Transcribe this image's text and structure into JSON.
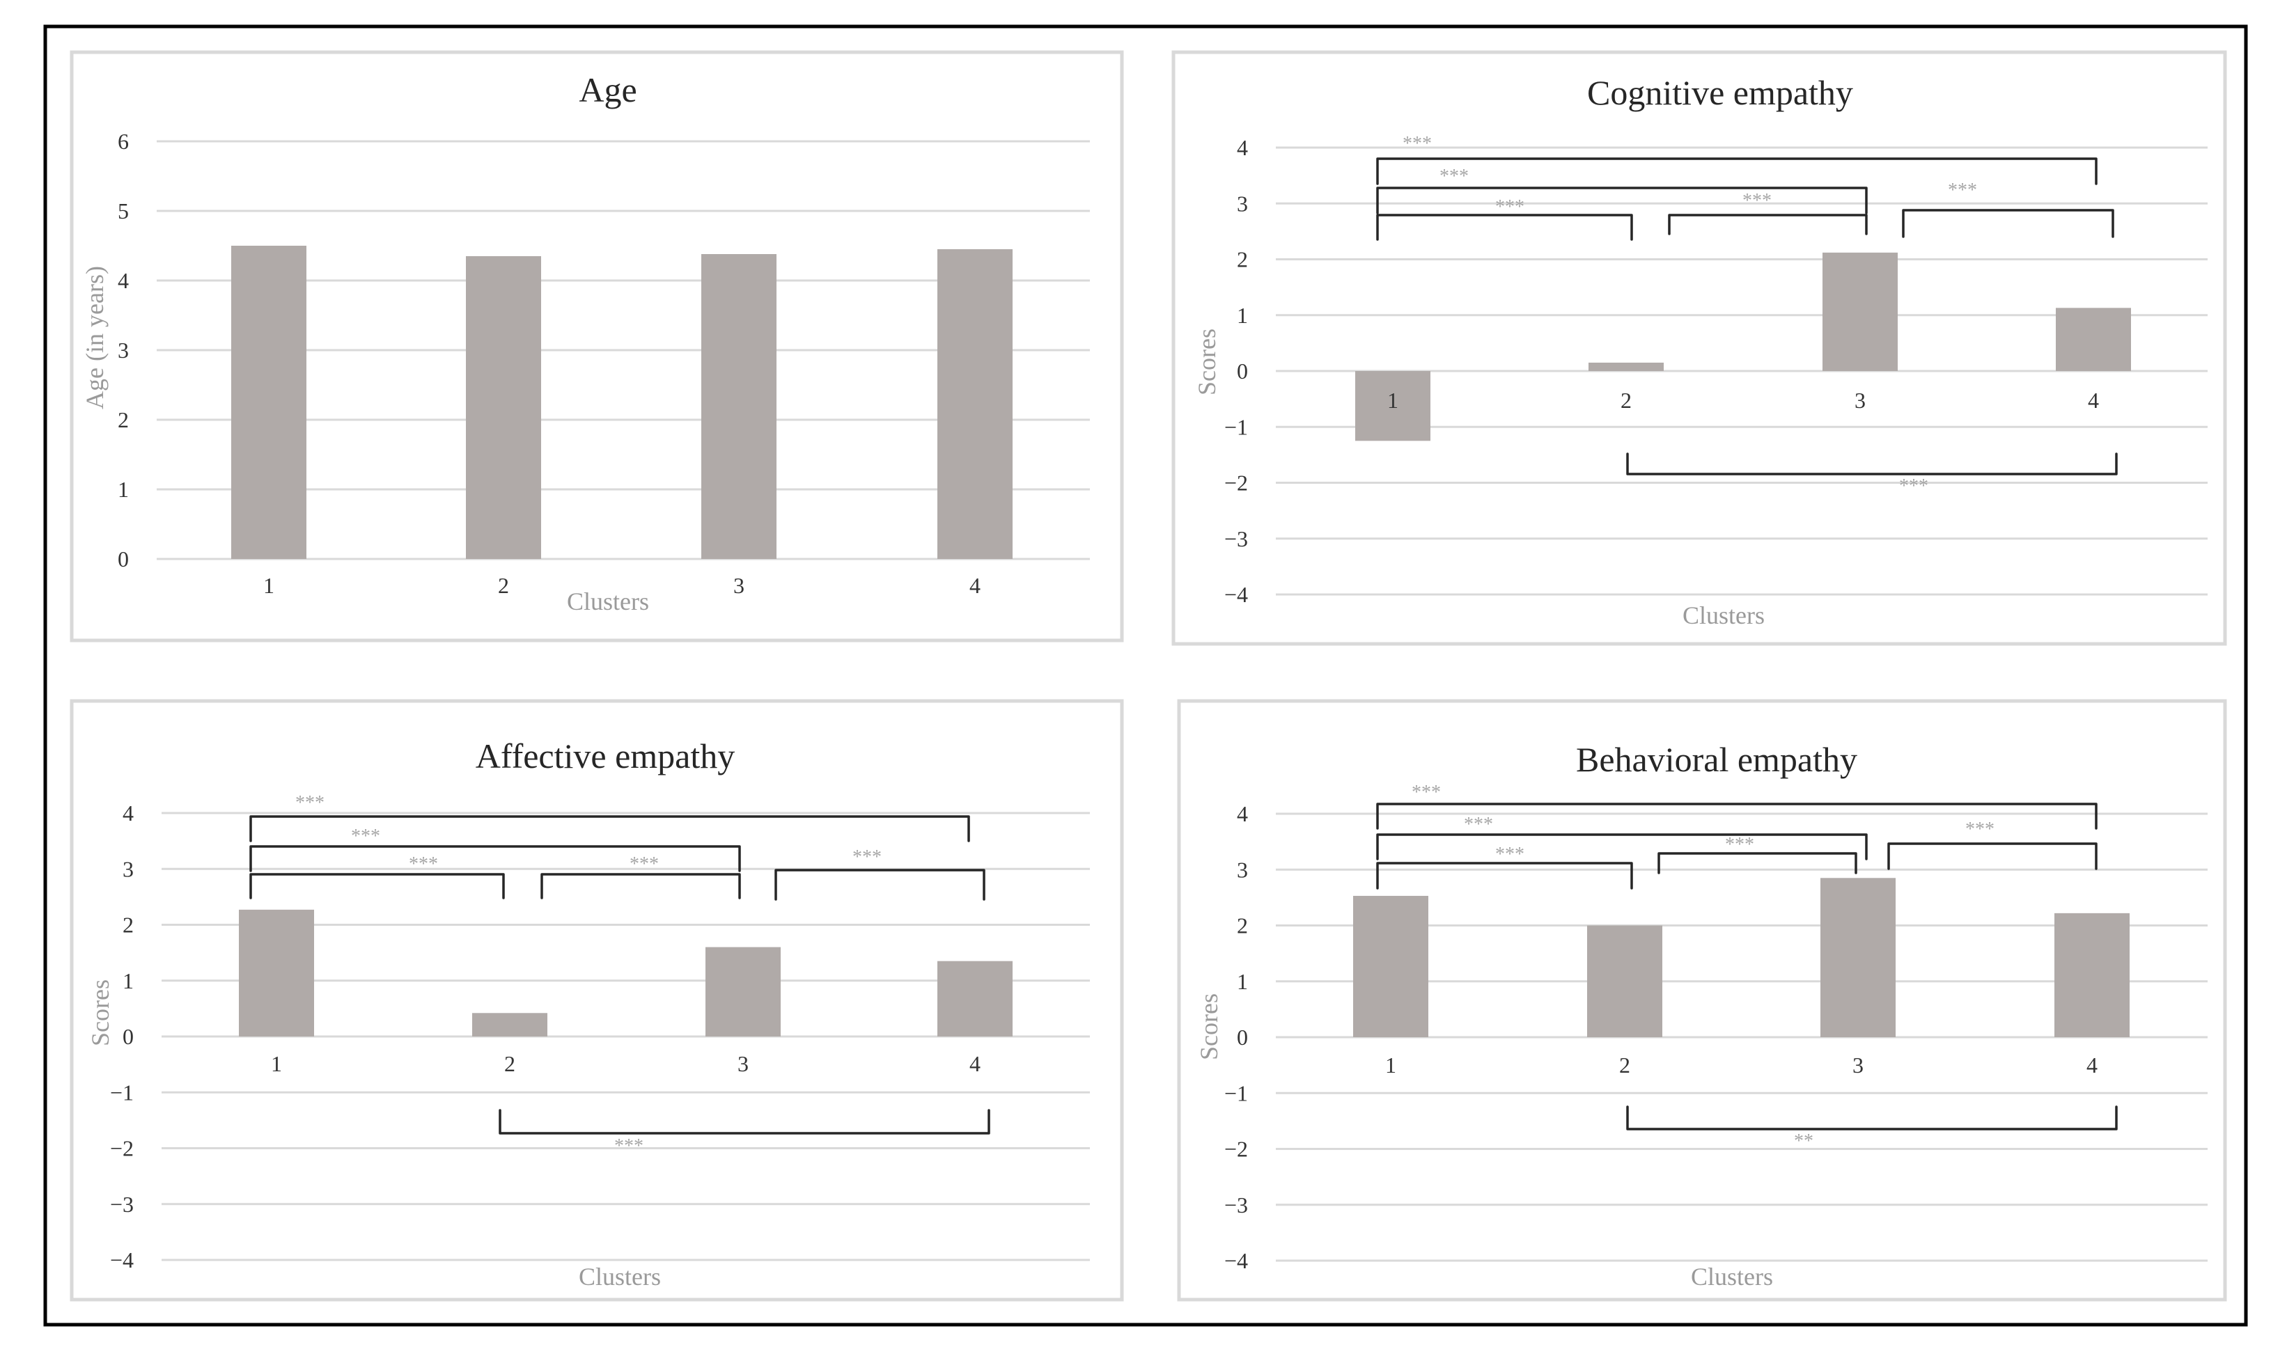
{
  "chart_data": [
    {
      "type": "bar",
      "title": "Age",
      "xlabel": "Clusters",
      "ylabel": "Age (in years)",
      "categories": [
        "1",
        "2",
        "3",
        "4"
      ],
      "values": [
        4.5,
        4.35,
        4.38,
        4.45
      ],
      "ylim": [
        0,
        6
      ],
      "yticks": [
        "0",
        "1",
        "2",
        "3",
        "4",
        "5",
        "6"
      ],
      "grid": true,
      "significance": []
    },
    {
      "type": "bar",
      "title": "Cognitive empathy",
      "xlabel": "Clusters",
      "ylabel": "Scores",
      "categories": [
        "1",
        "2",
        "3",
        "4"
      ],
      "values": [
        -1.25,
        0.15,
        2.12,
        1.13
      ],
      "ylim": [
        -4,
        4
      ],
      "yticks": [
        "4",
        "3",
        "2",
        "1",
        "0",
        "−1",
        "−2",
        "−3",
        "−4"
      ],
      "grid": true,
      "significance": [
        {
          "from": "1",
          "to": "4",
          "label": "***"
        },
        {
          "from": "1",
          "to": "3",
          "label": "***"
        },
        {
          "from": "1",
          "to": "2",
          "label": "***"
        },
        {
          "from": "2",
          "to": "3",
          "label": "***"
        },
        {
          "from": "3",
          "to": "4",
          "label": "***"
        },
        {
          "from": "2",
          "to": "4",
          "label": "***"
        }
      ]
    },
    {
      "type": "bar",
      "title": "Affective empathy",
      "xlabel": "Clusters",
      "ylabel": "Scores",
      "categories": [
        "1",
        "2",
        "3",
        "4"
      ],
      "values": [
        2.27,
        0.42,
        1.6,
        1.35
      ],
      "ylim": [
        -4,
        4
      ],
      "yticks": [
        "4",
        "3",
        "2",
        "1",
        "0",
        "−1",
        "−2",
        "−3",
        "−4"
      ],
      "grid": true,
      "significance": [
        {
          "from": "1",
          "to": "4",
          "label": "***"
        },
        {
          "from": "1",
          "to": "3",
          "label": "***"
        },
        {
          "from": "1",
          "to": "2",
          "label": "***"
        },
        {
          "from": "2",
          "to": "3",
          "label": "***"
        },
        {
          "from": "3",
          "to": "4",
          "label": "***"
        },
        {
          "from": "2",
          "to": "4",
          "label": "***"
        }
      ]
    },
    {
      "type": "bar",
      "title": "Behavioral empathy",
      "xlabel": "Clusters",
      "ylabel": "Scores",
      "categories": [
        "1",
        "2",
        "3",
        "4"
      ],
      "values": [
        2.53,
        2.0,
        2.85,
        2.22
      ],
      "ylim": [
        -4,
        4
      ],
      "yticks": [
        "4",
        "3",
        "2",
        "1",
        "0",
        "−1",
        "−2",
        "−3",
        "−4"
      ],
      "grid": true,
      "significance": [
        {
          "from": "1",
          "to": "4",
          "label": "***"
        },
        {
          "from": "1",
          "to": "3",
          "label": "***"
        },
        {
          "from": "1",
          "to": "2",
          "label": "***"
        },
        {
          "from": "2",
          "to": "3",
          "label": "***"
        },
        {
          "from": "3",
          "to": "4",
          "label": "***"
        },
        {
          "from": "2",
          "to": "4",
          "label": "**"
        }
      ]
    }
  ]
}
